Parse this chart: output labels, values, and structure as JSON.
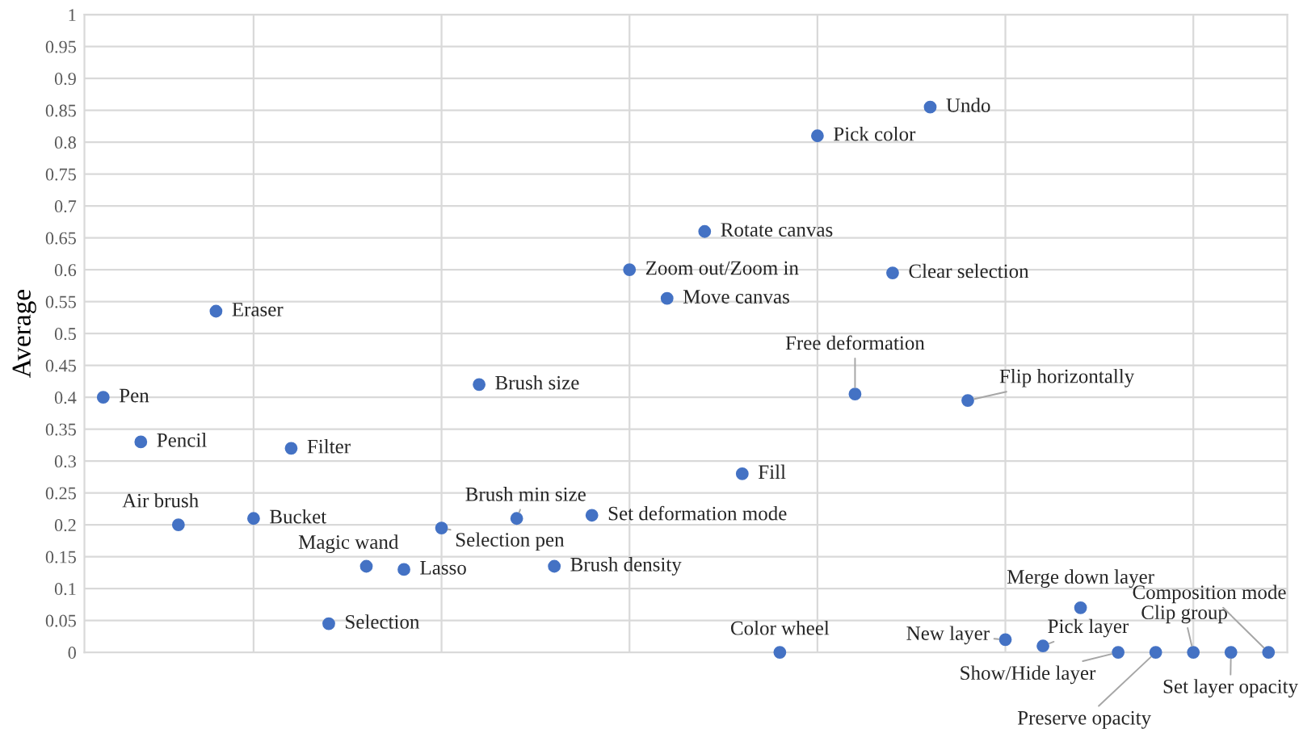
{
  "chart_data": {
    "type": "scatter",
    "ylabel": "Average",
    "color": "#4472c4",
    "marker": "circle",
    "grid": true,
    "tick_labels": "y",
    "categories": [
      null,
      null,
      null,
      null,
      null,
      null,
      null,
      null,
      null,
      null,
      null,
      null,
      null,
      null,
      null,
      null,
      null,
      null,
      null,
      null,
      null,
      null,
      null,
      null,
      null,
      null,
      null,
      null,
      null,
      null,
      null,
      null
    ],
    "values": [
      0.4,
      0.33,
      0.2,
      0.535,
      0.21,
      0.32,
      0.045,
      0.135,
      0.13,
      0.195,
      0.42,
      0.21,
      0.135,
      0.215,
      0.6,
      0.555,
      0.66,
      0.28,
      0,
      0.81,
      0.405,
      0.595,
      0.855,
      0.395,
      0.02,
      0.01,
      0.07,
      0,
      0,
      0,
      0,
      0
    ],
    "value_labels": [
      "Pen",
      "Pencil",
      "Air brush",
      "Eraser",
      "Bucket",
      "Filter",
      "Selection",
      "Magic wand",
      "Lasso",
      "Selection pen",
      "Brush size",
      "Brush min size",
      "Brush density",
      "Set deformation mode",
      "Zoom out/Zoom in",
      "Move canvas",
      "Rotate canvas",
      "Fill",
      "Color wheel",
      "Pick color",
      "Free deformation",
      "Clear selection",
      "Undo",
      "Flip horizontally",
      "New layer",
      "Pick layer",
      "Merge down layer",
      "Show/Hide layer",
      "Preserve opacity",
      "Clip group",
      "Set layer opacity",
      "Composition mode"
    ],
    "ylim": [
      0,
      1
    ],
    "yticks": [
      0,
      0.05,
      0.1,
      0.15,
      0.2,
      0.25,
      0.3,
      0.35,
      0.4,
      0.45,
      0.5,
      0.55,
      0.6,
      0.65,
      0.7,
      0.75,
      0.8,
      0.85,
      0.9,
      0.95,
      1
    ]
  }
}
